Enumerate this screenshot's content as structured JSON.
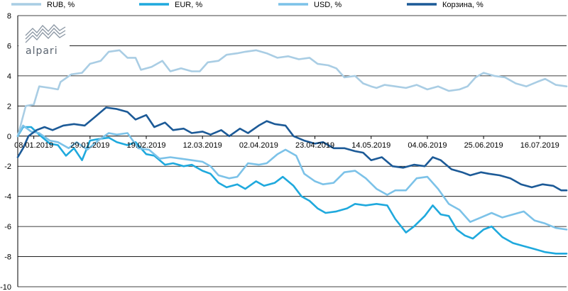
{
  "logo": {
    "text": "alpari"
  },
  "chart_data": {
    "type": "line",
    "title": "",
    "xlabel": "",
    "ylabel": "",
    "ylim": [
      -10,
      8
    ],
    "yticks": [
      8,
      6,
      4,
      2,
      0,
      -2,
      -4,
      -6,
      -8,
      -10
    ],
    "ytick_labels": [
      "8",
      "6",
      "4",
      "2",
      "0",
      "-2",
      "-4",
      "-6",
      "-8",
      "-10"
    ],
    "grid": "horizontal",
    "legend_position": "top",
    "x_tick_labels": [
      "08.01.2019",
      "29.01.2019",
      "19.02.2019",
      "12.03.2019",
      "02.04.2019",
      "23.04.2019",
      "14.05.2019",
      "04.06.2019",
      "25.06.2019",
      "16.07.2019"
    ],
    "x_start": "2019-01-02",
    "x_end": "2019-07-26",
    "series": [
      {
        "name": "RUB, %",
        "color": "#a9cde4",
        "points": [
          [
            "2019-01-02",
            0.0
          ],
          [
            "2019-01-05",
            2.0
          ],
          [
            "2019-01-08",
            2.1
          ],
          [
            "2019-01-10",
            3.3
          ],
          [
            "2019-01-14",
            3.2
          ],
          [
            "2019-01-17",
            3.1
          ],
          [
            "2019-01-18",
            3.6
          ],
          [
            "2019-01-22",
            4.1
          ],
          [
            "2019-01-26",
            4.2
          ],
          [
            "2019-01-29",
            4.8
          ],
          [
            "2019-02-02",
            5.0
          ],
          [
            "2019-02-05",
            5.6
          ],
          [
            "2019-02-09",
            5.7
          ],
          [
            "2019-02-12",
            5.2
          ],
          [
            "2019-02-15",
            5.2
          ],
          [
            "2019-02-17",
            4.4
          ],
          [
            "2019-02-21",
            4.6
          ],
          [
            "2019-02-25",
            5.0
          ],
          [
            "2019-02-28",
            4.3
          ],
          [
            "2019-03-04",
            4.5
          ],
          [
            "2019-03-08",
            4.3
          ],
          [
            "2019-03-11",
            4.3
          ],
          [
            "2019-03-14",
            4.9
          ],
          [
            "2019-03-18",
            5.0
          ],
          [
            "2019-03-21",
            5.4
          ],
          [
            "2019-03-25",
            5.5
          ],
          [
            "2019-03-28",
            5.6
          ],
          [
            "2019-04-01",
            5.7
          ],
          [
            "2019-04-05",
            5.5
          ],
          [
            "2019-04-09",
            5.2
          ],
          [
            "2019-04-13",
            5.3
          ],
          [
            "2019-04-17",
            5.1
          ],
          [
            "2019-04-21",
            5.2
          ],
          [
            "2019-04-24",
            4.8
          ],
          [
            "2019-04-28",
            4.7
          ],
          [
            "2019-05-01",
            4.5
          ],
          [
            "2019-05-04",
            3.9
          ],
          [
            "2019-05-08",
            4.0
          ],
          [
            "2019-05-11",
            3.5
          ],
          [
            "2019-05-14",
            3.3
          ],
          [
            "2019-05-16",
            3.2
          ],
          [
            "2019-05-19",
            3.4
          ],
          [
            "2019-05-23",
            3.3
          ],
          [
            "2019-05-27",
            3.2
          ],
          [
            "2019-05-31",
            3.4
          ],
          [
            "2019-06-04",
            3.1
          ],
          [
            "2019-06-08",
            3.3
          ],
          [
            "2019-06-12",
            3.0
          ],
          [
            "2019-06-16",
            3.1
          ],
          [
            "2019-06-19",
            3.3
          ],
          [
            "2019-06-22",
            3.9
          ],
          [
            "2019-06-25",
            4.2
          ],
          [
            "2019-06-29",
            4.0
          ],
          [
            "2019-07-03",
            3.9
          ],
          [
            "2019-07-07",
            3.5
          ],
          [
            "2019-07-11",
            3.3
          ],
          [
            "2019-07-15",
            3.6
          ],
          [
            "2019-07-18",
            3.8
          ],
          [
            "2019-07-22",
            3.4
          ],
          [
            "2019-07-26",
            3.3
          ]
        ]
      },
      {
        "name": "EUR, %",
        "color": "#1fa9dd",
        "points": [
          [
            "2019-01-02",
            0.0
          ],
          [
            "2019-01-04",
            0.6
          ],
          [
            "2019-01-07",
            0.6
          ],
          [
            "2019-01-10",
            0.1
          ],
          [
            "2019-01-14",
            -0.5
          ],
          [
            "2019-01-17",
            -0.6
          ],
          [
            "2019-01-20",
            -1.3
          ],
          [
            "2019-01-23",
            -0.8
          ],
          [
            "2019-01-26",
            -1.6
          ],
          [
            "2019-01-29",
            -0.3
          ],
          [
            "2019-02-01",
            -0.2
          ],
          [
            "2019-02-05",
            -0.1
          ],
          [
            "2019-02-08",
            -0.4
          ],
          [
            "2019-02-12",
            -0.6
          ],
          [
            "2019-02-15",
            -0.4
          ],
          [
            "2019-02-19",
            -1.2
          ],
          [
            "2019-02-22",
            -1.3
          ],
          [
            "2019-02-26",
            -1.9
          ],
          [
            "2019-03-01",
            -1.8
          ],
          [
            "2019-03-05",
            -2.0
          ],
          [
            "2019-03-08",
            -1.9
          ],
          [
            "2019-03-12",
            -2.3
          ],
          [
            "2019-03-15",
            -2.5
          ],
          [
            "2019-03-18",
            -3.1
          ],
          [
            "2019-03-21",
            -3.4
          ],
          [
            "2019-03-25",
            -3.2
          ],
          [
            "2019-03-28",
            -3.5
          ],
          [
            "2019-04-01",
            -3.0
          ],
          [
            "2019-04-04",
            -3.3
          ],
          [
            "2019-04-08",
            -3.1
          ],
          [
            "2019-04-11",
            -2.7
          ],
          [
            "2019-04-15",
            -3.3
          ],
          [
            "2019-04-18",
            -4.0
          ],
          [
            "2019-04-21",
            -4.3
          ],
          [
            "2019-04-24",
            -4.8
          ],
          [
            "2019-04-27",
            -5.1
          ],
          [
            "2019-05-01",
            -5.0
          ],
          [
            "2019-05-05",
            -4.8
          ],
          [
            "2019-05-08",
            -4.5
          ],
          [
            "2019-05-12",
            -4.6
          ],
          [
            "2019-05-16",
            -4.5
          ],
          [
            "2019-05-20",
            -4.6
          ],
          [
            "2019-05-23",
            -5.5
          ],
          [
            "2019-05-27",
            -6.4
          ],
          [
            "2019-05-30",
            -6.0
          ],
          [
            "2019-06-03",
            -5.3
          ],
          [
            "2019-06-06",
            -4.6
          ],
          [
            "2019-06-09",
            -5.2
          ],
          [
            "2019-06-12",
            -5.3
          ],
          [
            "2019-06-15",
            -6.2
          ],
          [
            "2019-06-18",
            -6.6
          ],
          [
            "2019-06-21",
            -6.8
          ],
          [
            "2019-06-25",
            -6.2
          ],
          [
            "2019-06-28",
            -6.0
          ],
          [
            "2019-07-02",
            -6.7
          ],
          [
            "2019-07-06",
            -7.1
          ],
          [
            "2019-07-10",
            -7.3
          ],
          [
            "2019-07-14",
            -7.5
          ],
          [
            "2019-07-18",
            -7.7
          ],
          [
            "2019-07-22",
            -7.8
          ],
          [
            "2019-07-26",
            -7.8
          ]
        ]
      },
      {
        "name": "USD, %",
        "color": "#7cc2e8",
        "points": [
          [
            "2019-01-02",
            0.0
          ],
          [
            "2019-01-04",
            0.7
          ],
          [
            "2019-01-07",
            0.3
          ],
          [
            "2019-01-10",
            0.2
          ],
          [
            "2019-01-14",
            -0.3
          ],
          [
            "2019-01-17",
            -0.4
          ],
          [
            "2019-01-21",
            -0.8
          ],
          [
            "2019-01-24",
            -0.4
          ],
          [
            "2019-01-28",
            -0.9
          ],
          [
            "2019-02-01",
            -0.3
          ],
          [
            "2019-02-05",
            0.2
          ],
          [
            "2019-02-08",
            0.1
          ],
          [
            "2019-02-12",
            0.2
          ],
          [
            "2019-02-16",
            -0.8
          ],
          [
            "2019-02-20",
            -0.9
          ],
          [
            "2019-02-24",
            -1.5
          ],
          [
            "2019-02-28",
            -1.4
          ],
          [
            "2019-03-04",
            -1.5
          ],
          [
            "2019-03-08",
            -1.6
          ],
          [
            "2019-03-12",
            -1.7
          ],
          [
            "2019-03-15",
            -2.0
          ],
          [
            "2019-03-18",
            -2.6
          ],
          [
            "2019-03-22",
            -2.8
          ],
          [
            "2019-03-25",
            -2.7
          ],
          [
            "2019-03-29",
            -1.8
          ],
          [
            "2019-04-02",
            -1.9
          ],
          [
            "2019-04-05",
            -1.8
          ],
          [
            "2019-04-09",
            -1.2
          ],
          [
            "2019-04-12",
            -0.9
          ],
          [
            "2019-04-16",
            -1.3
          ],
          [
            "2019-04-19",
            -2.5
          ],
          [
            "2019-04-23",
            -3.0
          ],
          [
            "2019-04-26",
            -3.2
          ],
          [
            "2019-04-30",
            -3.1
          ],
          [
            "2019-05-04",
            -2.4
          ],
          [
            "2019-05-08",
            -2.3
          ],
          [
            "2019-05-12",
            -2.8
          ],
          [
            "2019-05-16",
            -3.5
          ],
          [
            "2019-05-20",
            -3.9
          ],
          [
            "2019-05-23",
            -3.6
          ],
          [
            "2019-05-27",
            -3.6
          ],
          [
            "2019-05-31",
            -2.8
          ],
          [
            "2019-06-04",
            -2.7
          ],
          [
            "2019-06-08",
            -3.5
          ],
          [
            "2019-06-12",
            -4.5
          ],
          [
            "2019-06-16",
            -4.9
          ],
          [
            "2019-06-20",
            -5.7
          ],
          [
            "2019-06-24",
            -5.4
          ],
          [
            "2019-06-28",
            -5.1
          ],
          [
            "2019-07-02",
            -5.4
          ],
          [
            "2019-07-06",
            -5.2
          ],
          [
            "2019-07-10",
            -5.0
          ],
          [
            "2019-07-14",
            -5.6
          ],
          [
            "2019-07-18",
            -5.8
          ],
          [
            "2019-07-22",
            -6.1
          ],
          [
            "2019-07-26",
            -6.2
          ]
        ]
      },
      {
        "name": "Корзина, %",
        "color": "#1c5a97",
        "points": [
          [
            "2019-01-02",
            -1.4
          ],
          [
            "2019-01-04",
            -0.8
          ],
          [
            "2019-01-06",
            0.0
          ],
          [
            "2019-01-09",
            0.4
          ],
          [
            "2019-01-12",
            0.6
          ],
          [
            "2019-01-15",
            0.4
          ],
          [
            "2019-01-19",
            0.7
          ],
          [
            "2019-01-23",
            0.8
          ],
          [
            "2019-01-27",
            0.7
          ],
          [
            "2019-01-31",
            1.3
          ],
          [
            "2019-02-04",
            1.9
          ],
          [
            "2019-02-08",
            1.8
          ],
          [
            "2019-02-12",
            1.6
          ],
          [
            "2019-02-15",
            1.1
          ],
          [
            "2019-02-19",
            1.4
          ],
          [
            "2019-02-22",
            0.6
          ],
          [
            "2019-02-26",
            0.9
          ],
          [
            "2019-03-01",
            0.4
          ],
          [
            "2019-03-05",
            0.5
          ],
          [
            "2019-03-08",
            0.2
          ],
          [
            "2019-03-12",
            0.3
          ],
          [
            "2019-03-15",
            0.1
          ],
          [
            "2019-03-19",
            0.4
          ],
          [
            "2019-03-22",
            0.0
          ],
          [
            "2019-03-26",
            0.5
          ],
          [
            "2019-03-29",
            0.2
          ],
          [
            "2019-04-02",
            0.7
          ],
          [
            "2019-04-05",
            1.0
          ],
          [
            "2019-04-08",
            0.8
          ],
          [
            "2019-04-12",
            0.7
          ],
          [
            "2019-04-15",
            0.0
          ],
          [
            "2019-04-19",
            -0.3
          ],
          [
            "2019-04-23",
            -0.5
          ],
          [
            "2019-04-26",
            -0.4
          ],
          [
            "2019-04-30",
            -0.8
          ],
          [
            "2019-05-04",
            -0.8
          ],
          [
            "2019-05-08",
            -1.0
          ],
          [
            "2019-05-11",
            -1.1
          ],
          [
            "2019-05-14",
            -1.6
          ],
          [
            "2019-05-18",
            -1.4
          ],
          [
            "2019-05-22",
            -2.0
          ],
          [
            "2019-05-26",
            -2.1
          ],
          [
            "2019-05-30",
            -1.9
          ],
          [
            "2019-06-03",
            -2.0
          ],
          [
            "2019-06-06",
            -1.4
          ],
          [
            "2019-06-09",
            -1.6
          ],
          [
            "2019-06-13",
            -2.2
          ],
          [
            "2019-06-17",
            -2.4
          ],
          [
            "2019-06-20",
            -2.6
          ],
          [
            "2019-06-24",
            -2.4
          ],
          [
            "2019-06-27",
            -2.5
          ],
          [
            "2019-07-01",
            -2.6
          ],
          [
            "2019-07-05",
            -2.8
          ],
          [
            "2019-07-09",
            -3.2
          ],
          [
            "2019-07-13",
            -3.4
          ],
          [
            "2019-07-17",
            -3.2
          ],
          [
            "2019-07-21",
            -3.3
          ],
          [
            "2019-07-24",
            -3.6
          ],
          [
            "2019-07-26",
            -3.6
          ]
        ]
      }
    ]
  }
}
